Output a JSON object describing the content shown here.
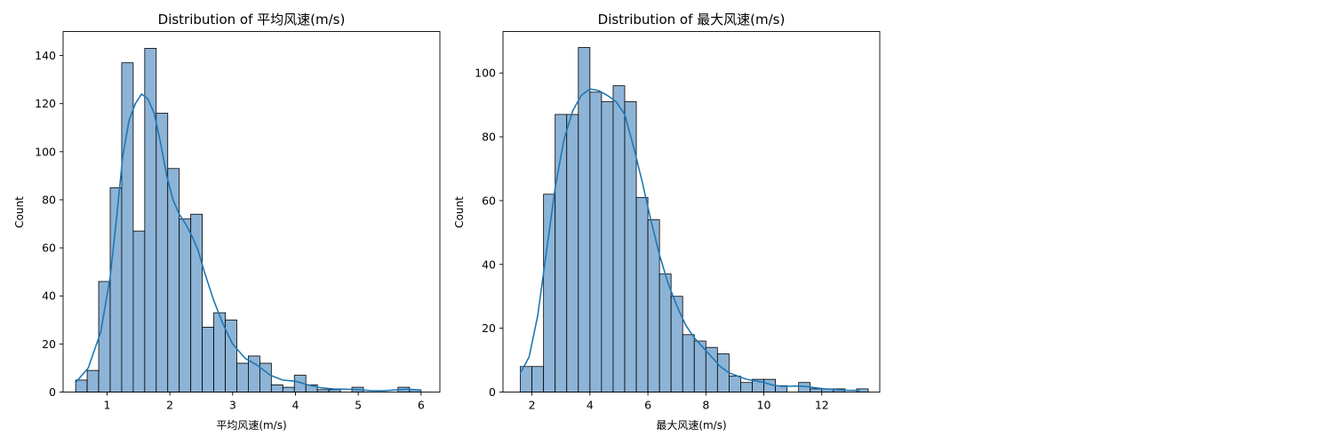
{
  "chart_data": [
    {
      "type": "bar",
      "title": "Distribution of 平均风速(m/s)",
      "xlabel": "平均风速(m/s)",
      "ylabel": "Count",
      "xlim": [
        0.3,
        6.3
      ],
      "ylim": [
        0,
        150
      ],
      "xticks": [
        1,
        2,
        3,
        4,
        5,
        6
      ],
      "yticks": [
        0,
        20,
        40,
        60,
        80,
        100,
        120,
        140
      ],
      "bar_color": "#8db4d6",
      "line_color": "#1f77b4",
      "bins": {
        "start": 0.5,
        "width": 0.1833,
        "counts": [
          5,
          9,
          46,
          85,
          137,
          67,
          143,
          116,
          93,
          72,
          74,
          27,
          33,
          30,
          12,
          15,
          12,
          3,
          2,
          7,
          3,
          1,
          1,
          0,
          2,
          0,
          0,
          0,
          2,
          1
        ]
      },
      "kde": [
        [
          0.5,
          4
        ],
        [
          0.7,
          10
        ],
        [
          0.9,
          25
        ],
        [
          1.05,
          48
        ],
        [
          1.15,
          72
        ],
        [
          1.25,
          98
        ],
        [
          1.35,
          113
        ],
        [
          1.45,
          120
        ],
        [
          1.55,
          124
        ],
        [
          1.65,
          122
        ],
        [
          1.75,
          116
        ],
        [
          1.85,
          104
        ],
        [
          1.95,
          90
        ],
        [
          2.05,
          80
        ],
        [
          2.15,
          74
        ],
        [
          2.25,
          70
        ],
        [
          2.35,
          65
        ],
        [
          2.45,
          59
        ],
        [
          2.55,
          50
        ],
        [
          2.7,
          38
        ],
        [
          2.85,
          28
        ],
        [
          3.0,
          20
        ],
        [
          3.2,
          14
        ],
        [
          3.4,
          11
        ],
        [
          3.6,
          7
        ],
        [
          3.8,
          5
        ],
        [
          4.0,
          4.5
        ],
        [
          4.2,
          3
        ],
        [
          4.4,
          1.8
        ],
        [
          4.6,
          1.3
        ],
        [
          4.8,
          1.2
        ],
        [
          5.0,
          1.0
        ],
        [
          5.2,
          0.6
        ],
        [
          5.4,
          0.5
        ],
        [
          5.6,
          0.9
        ],
        [
          5.8,
          1.2
        ],
        [
          6.0,
          0.8
        ]
      ]
    },
    {
      "type": "bar",
      "title": "Distribution of 最大风速(m/s)",
      "xlabel": "最大风速(m/s)",
      "ylabel": "Count",
      "xlim": [
        1.0,
        14.0
      ],
      "ylim": [
        0,
        113
      ],
      "xticks": [
        2,
        4,
        6,
        8,
        10,
        12
      ],
      "yticks": [
        0,
        20,
        40,
        60,
        80,
        100
      ],
      "bar_color": "#8db4d6",
      "line_color": "#1f77b4",
      "bins": {
        "start": 1.6,
        "width": 0.4,
        "counts": [
          8,
          8,
          62,
          87,
          87,
          108,
          94,
          91,
          96,
          91,
          61,
          54,
          37,
          30,
          18,
          16,
          14,
          12,
          5,
          3,
          4,
          4,
          2,
          0,
          3,
          1,
          1,
          1,
          0,
          1
        ]
      },
      "kde": [
        [
          1.6,
          6
        ],
        [
          1.9,
          11
        ],
        [
          2.2,
          24
        ],
        [
          2.5,
          44
        ],
        [
          2.8,
          64
        ],
        [
          3.1,
          79
        ],
        [
          3.4,
          88
        ],
        [
          3.7,
          93
        ],
        [
          4.0,
          95
        ],
        [
          4.3,
          94.5
        ],
        [
          4.6,
          93
        ],
        [
          4.9,
          91
        ],
        [
          5.2,
          87
        ],
        [
          5.5,
          77
        ],
        [
          5.8,
          66
        ],
        [
          6.1,
          54
        ],
        [
          6.4,
          43
        ],
        [
          6.7,
          34
        ],
        [
          7.0,
          27
        ],
        [
          7.3,
          21
        ],
        [
          7.6,
          17
        ],
        [
          7.9,
          14
        ],
        [
          8.2,
          11
        ],
        [
          8.5,
          8
        ],
        [
          8.8,
          6
        ],
        [
          9.1,
          5
        ],
        [
          9.4,
          4
        ],
        [
          9.7,
          3.5
        ],
        [
          10.0,
          3
        ],
        [
          10.3,
          2.2
        ],
        [
          10.6,
          1.8
        ],
        [
          10.9,
          1.8
        ],
        [
          11.2,
          1.9
        ],
        [
          11.5,
          1.7
        ],
        [
          11.8,
          1.3
        ],
        [
          12.1,
          1.0
        ],
        [
          12.4,
          0.8
        ],
        [
          12.7,
          0.6
        ],
        [
          13.0,
          0.5
        ],
        [
          13.3,
          0.5
        ]
      ]
    }
  ]
}
